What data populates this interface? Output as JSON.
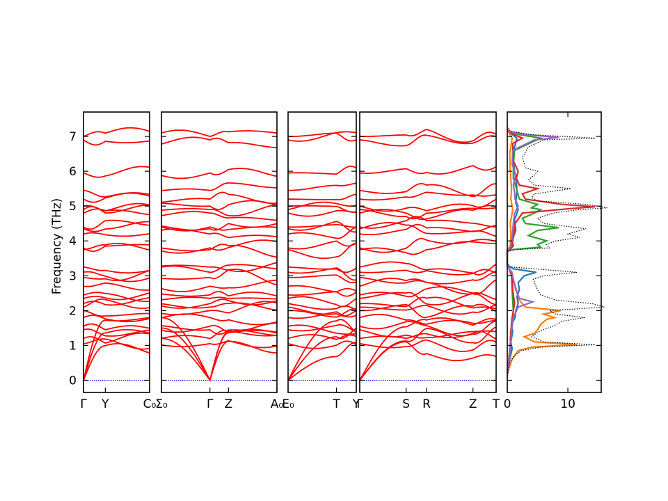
{
  "chart_data": {
    "type": "line",
    "title": "",
    "ylabel": "Frequency (THz)",
    "ylim": [
      -0.35,
      7.7
    ],
    "yticks": [
      0,
      1,
      2,
      3,
      4,
      5,
      6,
      7
    ],
    "band_color": "#ff0000",
    "zero_line_color": "#0000cc",
    "grid": false,
    "band_panels": [
      {
        "labels": [
          "Γ",
          "Y",
          "C₀"
        ],
        "qpos": [
          0,
          0.33,
          1.0
        ]
      },
      {
        "labels": [
          "Σ₀",
          "Γ",
          "Z",
          "A₀"
        ],
        "qpos": [
          0,
          0.42,
          0.58,
          1.0
        ]
      },
      {
        "labels": [
          "E₀",
          "T",
          "Y"
        ],
        "qpos": [
          0,
          0.71,
          1.0
        ]
      },
      {
        "labels": [
          "Γ",
          "S",
          "R",
          "Z",
          "T"
        ],
        "qpos": [
          0,
          0.34,
          0.49,
          0.83,
          1.0
        ]
      }
    ],
    "gamma_frequencies": [
      0,
      0,
      0,
      1.05,
      1.2,
      1.45,
      1.55,
      1.8,
      2.0,
      2.1,
      2.2,
      2.35,
      2.45,
      2.7,
      2.95,
      3.1,
      3.25,
      3.75,
      3.8,
      4.2,
      4.35,
      4.4,
      4.8,
      4.9,
      5.0,
      5.2,
      5.45,
      5.95,
      6.9,
      7.0
    ],
    "dos": {
      "xlim": [
        0,
        15.5
      ],
      "xticks": [
        0,
        10
      ],
      "total_color": "#000000",
      "total": [
        [
          0.0,
          0.0
        ],
        [
          0.3,
          0.2
        ],
        [
          0.5,
          0.4
        ],
        [
          0.7,
          1.1
        ],
        [
          0.85,
          2.3
        ],
        [
          0.95,
          5.5
        ],
        [
          1.02,
          14.5
        ],
        [
          1.1,
          6.0
        ],
        [
          1.25,
          4.0
        ],
        [
          1.4,
          5.2
        ],
        [
          1.55,
          7.5
        ],
        [
          1.7,
          9.2
        ],
        [
          1.8,
          12.8
        ],
        [
          1.9,
          8.0
        ],
        [
          2.0,
          7.0
        ],
        [
          2.1,
          16.0
        ],
        [
          2.2,
          14.0
        ],
        [
          2.3,
          8.0
        ],
        [
          2.45,
          5.5
        ],
        [
          2.6,
          5.0
        ],
        [
          2.75,
          4.6
        ],
        [
          2.9,
          4.3
        ],
        [
          3.0,
          6.0
        ],
        [
          3.1,
          11.5
        ],
        [
          3.2,
          4.5
        ],
        [
          3.25,
          0.6
        ],
        [
          3.35,
          0.0
        ],
        [
          3.7,
          0.0
        ],
        [
          3.75,
          1.5
        ],
        [
          3.8,
          7.0
        ],
        [
          3.9,
          6.5
        ],
        [
          4.0,
          8.0
        ],
        [
          4.1,
          12.0
        ],
        [
          4.2,
          10.0
        ],
        [
          4.35,
          13.0
        ],
        [
          4.5,
          6.0
        ],
        [
          4.65,
          5.0
        ],
        [
          4.8,
          7.5
        ],
        [
          4.9,
          12.0
        ],
        [
          4.95,
          16.5
        ],
        [
          5.0,
          15.0
        ],
        [
          5.05,
          13.0
        ],
        [
          5.15,
          5.0
        ],
        [
          5.25,
          4.0
        ],
        [
          5.35,
          4.5
        ],
        [
          5.5,
          10.5
        ],
        [
          5.6,
          4.5
        ],
        [
          5.75,
          3.5
        ],
        [
          5.9,
          4.5
        ],
        [
          6.0,
          5.0
        ],
        [
          6.1,
          3.0
        ],
        [
          6.4,
          2.5
        ],
        [
          6.7,
          3.5
        ],
        [
          6.9,
          6.0
        ],
        [
          6.95,
          14.5
        ],
        [
          7.05,
          4.0
        ],
        [
          7.15,
          0.5
        ],
        [
          7.3,
          0.0
        ]
      ],
      "partial": [
        {
          "color": "#1f77b4",
          "points": [
            [
              0.2,
              0.0
            ],
            [
              0.6,
              0.4
            ],
            [
              0.9,
              0.8
            ],
            [
              1.1,
              0.6
            ],
            [
              1.4,
              0.9
            ],
            [
              1.6,
              0.7
            ],
            [
              1.8,
              1.3
            ],
            [
              2.0,
              1.4
            ],
            [
              2.2,
              1.8
            ],
            [
              2.4,
              1.6
            ],
            [
              2.6,
              2.0
            ],
            [
              2.8,
              1.8
            ],
            [
              3.0,
              2.8
            ],
            [
              3.1,
              4.8
            ],
            [
              3.2,
              1.0
            ],
            [
              3.3,
              0.0
            ],
            [
              3.7,
              0.0
            ],
            [
              3.85,
              1.0
            ],
            [
              4.0,
              0.8
            ],
            [
              4.3,
              1.4
            ],
            [
              4.6,
              1.2
            ],
            [
              4.9,
              1.8
            ],
            [
              5.1,
              1.4
            ],
            [
              5.4,
              1.6
            ],
            [
              5.7,
              1.5
            ],
            [
              6.0,
              1.2
            ],
            [
              6.5,
              0.9
            ],
            [
              6.95,
              1.6
            ],
            [
              7.1,
              0.5
            ],
            [
              7.2,
              0.0
            ]
          ]
        },
        {
          "color": "#ff7f0e",
          "points": [
            [
              0.2,
              0.0
            ],
            [
              0.6,
              0.8
            ],
            [
              0.85,
              1.8
            ],
            [
              0.95,
              4.0
            ],
            [
              1.02,
              11.5
            ],
            [
              1.1,
              4.5
            ],
            [
              1.25,
              2.8
            ],
            [
              1.35,
              4.5
            ],
            [
              1.45,
              5.0
            ],
            [
              1.6,
              5.5
            ],
            [
              1.75,
              6.5
            ],
            [
              1.8,
              7.8
            ],
            [
              1.9,
              6.0
            ],
            [
              2.0,
              8.8
            ],
            [
              2.1,
              3.0
            ],
            [
              2.3,
              2.0
            ],
            [
              2.6,
              1.5
            ],
            [
              2.9,
              1.0
            ],
            [
              3.1,
              0.8
            ],
            [
              3.2,
              0.3
            ],
            [
              3.3,
              0.0
            ],
            [
              3.75,
              0.0
            ],
            [
              3.85,
              0.5
            ],
            [
              4.2,
              0.6
            ],
            [
              4.5,
              0.5
            ],
            [
              4.9,
              0.9
            ],
            [
              5.2,
              0.6
            ],
            [
              5.5,
              0.7
            ],
            [
              6.0,
              0.5
            ],
            [
              6.5,
              0.4
            ],
            [
              6.95,
              0.8
            ],
            [
              7.1,
              0.3
            ],
            [
              7.2,
              0.0
            ]
          ]
        },
        {
          "color": "#2ca02c",
          "points": [
            [
              0.2,
              0.0
            ],
            [
              0.6,
              0.3
            ],
            [
              0.9,
              0.6
            ],
            [
              1.2,
              0.5
            ],
            [
              1.6,
              0.8
            ],
            [
              2.0,
              1.0
            ],
            [
              2.3,
              0.9
            ],
            [
              2.6,
              0.8
            ],
            [
              3.0,
              0.7
            ],
            [
              3.2,
              0.3
            ],
            [
              3.3,
              0.0
            ],
            [
              3.7,
              0.0
            ],
            [
              3.75,
              0.8
            ],
            [
              3.82,
              5.5
            ],
            [
              3.9,
              5.0
            ],
            [
              4.0,
              6.5
            ],
            [
              4.15,
              3.5
            ],
            [
              4.3,
              5.0
            ],
            [
              4.38,
              8.5
            ],
            [
              4.5,
              3.0
            ],
            [
              4.65,
              2.5
            ],
            [
              4.8,
              4.5
            ],
            [
              4.9,
              5.5
            ],
            [
              4.95,
              4.0
            ],
            [
              5.05,
              5.0
            ],
            [
              5.2,
              2.0
            ],
            [
              5.5,
              1.5
            ],
            [
              5.8,
              1.0
            ],
            [
              6.2,
              1.0
            ],
            [
              6.6,
              1.2
            ],
            [
              6.95,
              5.5
            ],
            [
              7.05,
              2.0
            ],
            [
              7.15,
              0.0
            ]
          ]
        },
        {
          "color": "#d62728",
          "points": [
            [
              0.2,
              0.0
            ],
            [
              0.7,
              0.3
            ],
            [
              1.0,
              0.5
            ],
            [
              1.4,
              0.6
            ],
            [
              1.8,
              0.8
            ],
            [
              2.2,
              1.2
            ],
            [
              2.6,
              0.9
            ],
            [
              3.0,
              0.8
            ],
            [
              3.2,
              0.3
            ],
            [
              3.3,
              0.0
            ],
            [
              3.7,
              0.0
            ],
            [
              3.8,
              0.7
            ],
            [
              4.0,
              0.9
            ],
            [
              4.2,
              1.1
            ],
            [
              4.5,
              1.3
            ],
            [
              4.8,
              2.5
            ],
            [
              4.93,
              10.5
            ],
            [
              4.98,
              14.5
            ],
            [
              5.05,
              9.0
            ],
            [
              5.2,
              3.0
            ],
            [
              5.35,
              2.5
            ],
            [
              5.5,
              5.0
            ],
            [
              5.6,
              2.0
            ],
            [
              5.8,
              1.5
            ],
            [
              6.0,
              1.8
            ],
            [
              6.3,
              1.0
            ],
            [
              6.8,
              0.9
            ],
            [
              6.95,
              2.5
            ],
            [
              7.1,
              0.5
            ],
            [
              7.2,
              0.0
            ]
          ]
        },
        {
          "color": "#9467bd",
          "points": [
            [
              0.2,
              0.0
            ],
            [
              0.6,
              0.3
            ],
            [
              1.0,
              0.6
            ],
            [
              1.4,
              0.7
            ],
            [
              1.8,
              1.0
            ],
            [
              2.1,
              1.8
            ],
            [
              2.25,
              4.2
            ],
            [
              2.35,
              2.0
            ],
            [
              2.6,
              1.4
            ],
            [
              2.9,
              1.0
            ],
            [
              3.1,
              0.7
            ],
            [
              3.2,
              0.3
            ],
            [
              3.3,
              0.0
            ],
            [
              3.7,
              0.0
            ],
            [
              3.85,
              0.6
            ],
            [
              4.1,
              0.8
            ],
            [
              4.5,
              1.0
            ],
            [
              4.8,
              1.2
            ],
            [
              5.0,
              1.8
            ],
            [
              5.2,
              1.3
            ],
            [
              5.4,
              1.2
            ],
            [
              5.6,
              1.0
            ],
            [
              5.9,
              1.4
            ],
            [
              6.2,
              0.8
            ],
            [
              6.6,
              0.9
            ],
            [
              6.9,
              4.5
            ],
            [
              6.97,
              8.5
            ],
            [
              7.05,
              3.0
            ],
            [
              7.15,
              0.0
            ]
          ]
        }
      ]
    }
  }
}
